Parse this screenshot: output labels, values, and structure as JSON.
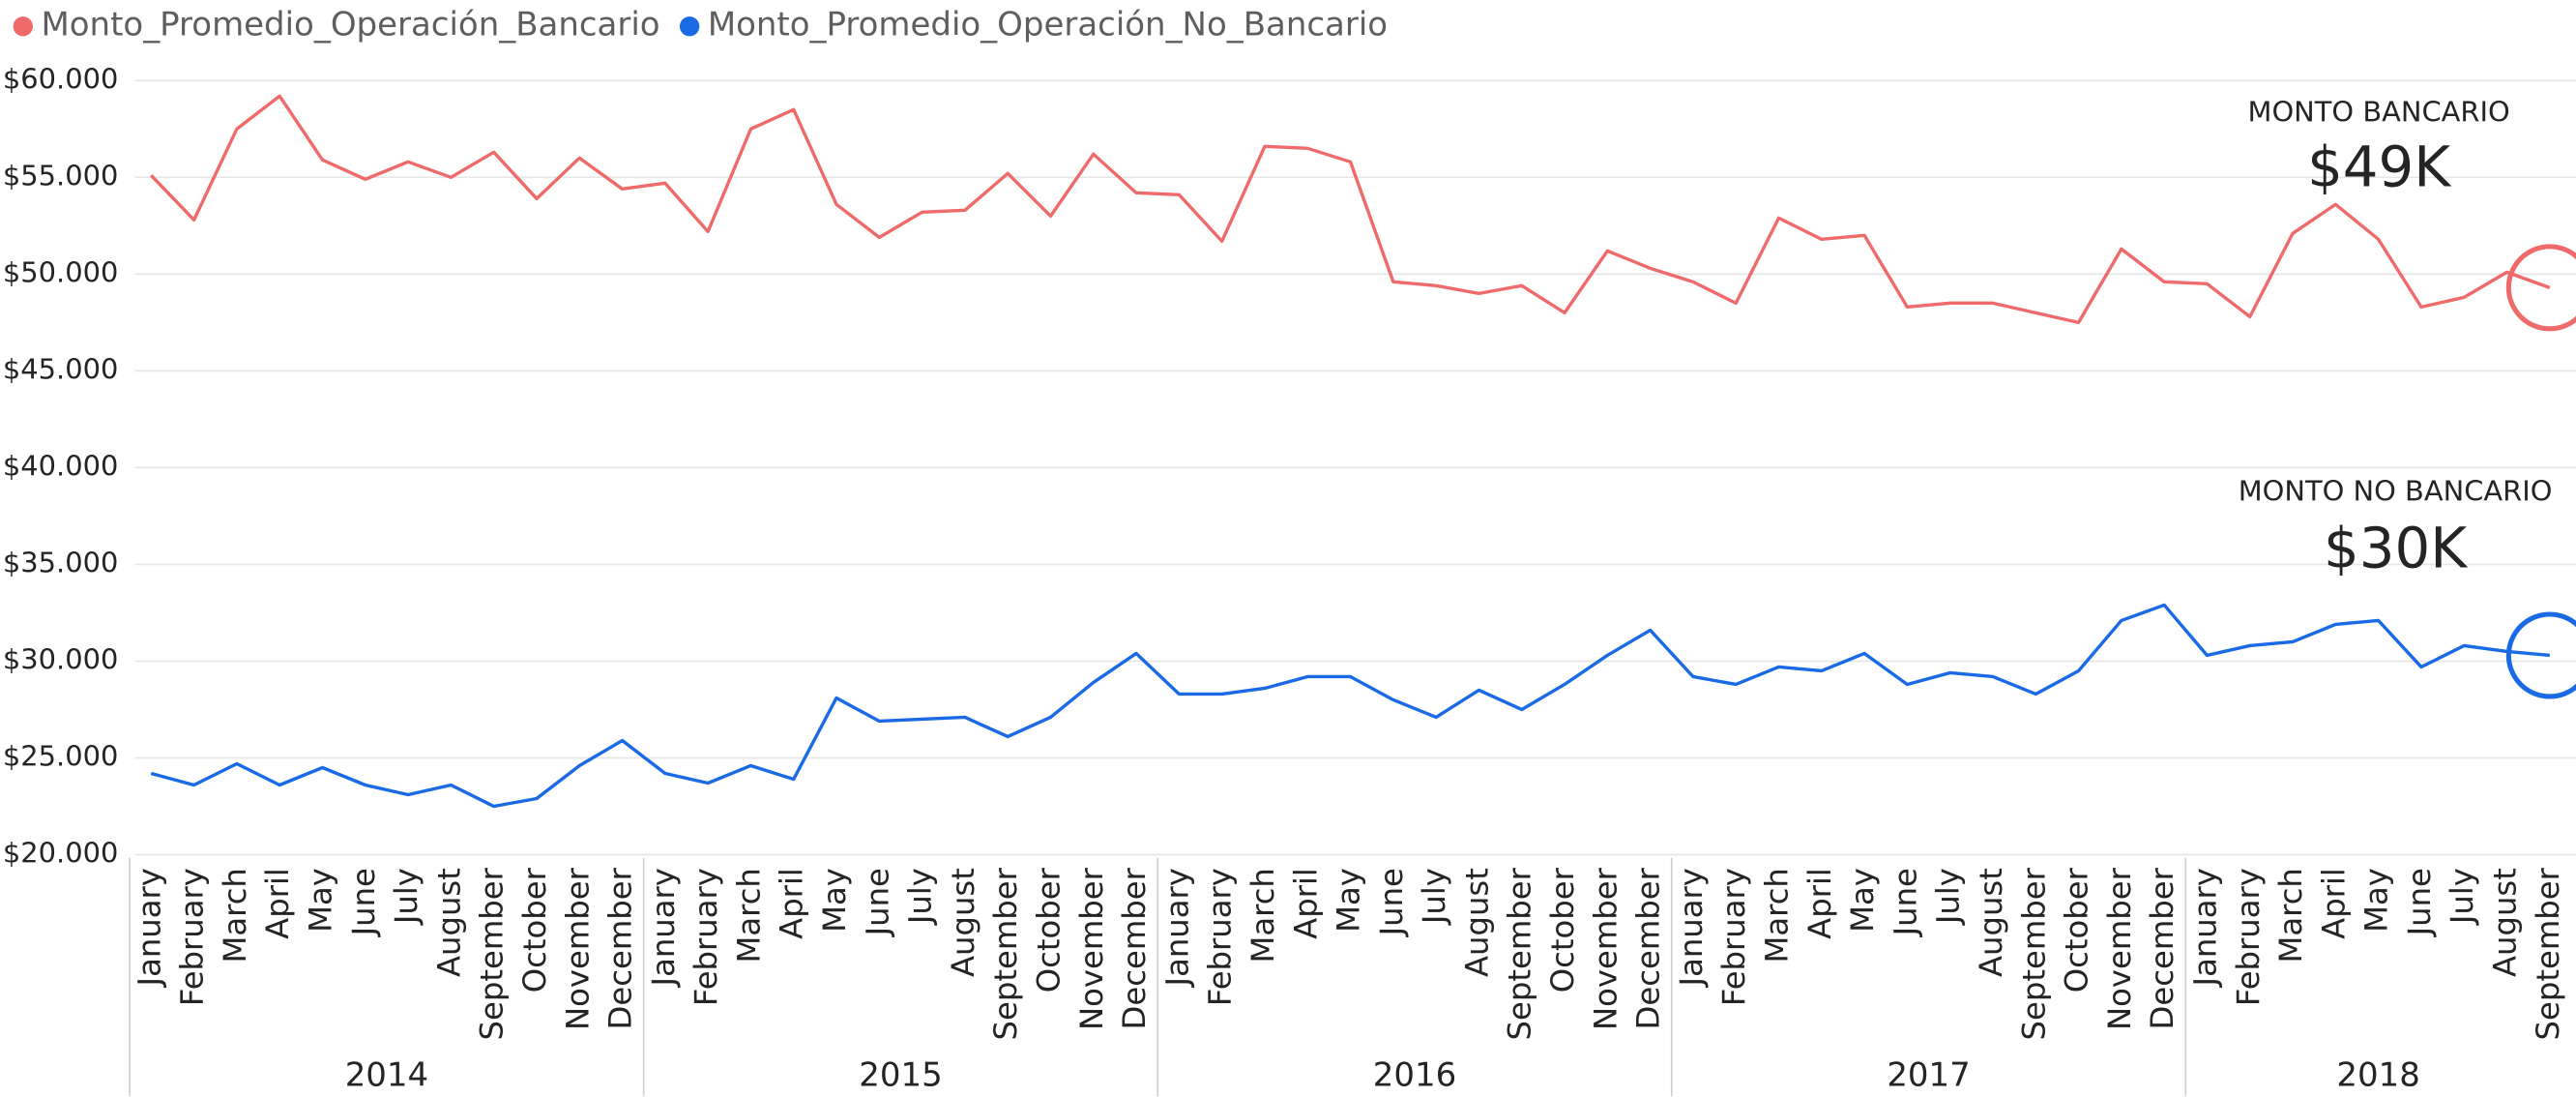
{
  "chart_data": {
    "type": "line",
    "categories": [
      "January",
      "February",
      "March",
      "April",
      "May",
      "June",
      "July",
      "August",
      "September",
      "October",
      "November",
      "December",
      "January",
      "February",
      "March",
      "April",
      "May",
      "June",
      "July",
      "August",
      "September",
      "October",
      "November",
      "December",
      "January",
      "February",
      "March",
      "April",
      "May",
      "June",
      "July",
      "August",
      "September",
      "October",
      "November",
      "December",
      "January",
      "February",
      "March",
      "April",
      "May",
      "June",
      "July",
      "August",
      "September",
      "October",
      "November",
      "December",
      "January",
      "February",
      "March",
      "April",
      "May",
      "June",
      "July",
      "August",
      "September"
    ],
    "years": [
      "2014",
      "2015",
      "2016",
      "2017",
      "2018"
    ],
    "series": [
      {
        "name": "Monto_Promedio_Operación_Bancario",
        "color": "#ef6a6a",
        "values": [
          55100,
          52800,
          57500,
          59200,
          55900,
          54900,
          55800,
          55000,
          56300,
          53900,
          56000,
          54400,
          54700,
          52200,
          57500,
          58500,
          53600,
          51900,
          53200,
          53300,
          55200,
          53000,
          56200,
          54200,
          54100,
          51700,
          56600,
          56500,
          55800,
          49600,
          49400,
          49000,
          49400,
          48000,
          51200,
          50300,
          49600,
          48500,
          52900,
          51800,
          52000,
          48300,
          48500,
          48500,
          48000,
          47500,
          51300,
          49600,
          49500,
          47800,
          52100,
          53600,
          51800,
          48300,
          48800,
          50100,
          49300
        ]
      },
      {
        "name": "Monto_Promedio_Operación_No_Bancario",
        "color": "#1a6ae6",
        "values": [
          24200,
          23600,
          24700,
          23600,
          24500,
          23600,
          23100,
          23600,
          22500,
          22900,
          24600,
          25900,
          24200,
          23700,
          24600,
          23900,
          28100,
          26900,
          27000,
          27100,
          26100,
          27100,
          28900,
          30400,
          28300,
          28300,
          28600,
          29200,
          29200,
          28000,
          27100,
          28500,
          27500,
          28800,
          30300,
          31600,
          29200,
          28800,
          29700,
          29500,
          30400,
          28800,
          29400,
          29200,
          28300,
          29500,
          32100,
          32900,
          30300,
          30800,
          31000,
          31900,
          32100,
          29700,
          30800,
          30500,
          30300
        ]
      }
    ],
    "annotations": [
      {
        "label": "MONTO BANCARIO",
        "value": "$49K"
      },
      {
        "label": "MONTO NO BANCARIO",
        "value": "$30K"
      }
    ],
    "ylim": [
      20000,
      60000
    ],
    "yticks": [
      {
        "value": 20000,
        "label": "$20.000"
      },
      {
        "value": 25000,
        "label": "$25.000"
      },
      {
        "value": 30000,
        "label": "$30.000"
      },
      {
        "value": 35000,
        "label": "$35.000"
      },
      {
        "value": 40000,
        "label": "$40.000"
      },
      {
        "value": 45000,
        "label": "$45.000"
      },
      {
        "value": 50000,
        "label": "$50.000"
      },
      {
        "value": 55000,
        "label": "$55.000"
      },
      {
        "value": 60000,
        "label": "$60.000"
      }
    ],
    "grid": true
  }
}
